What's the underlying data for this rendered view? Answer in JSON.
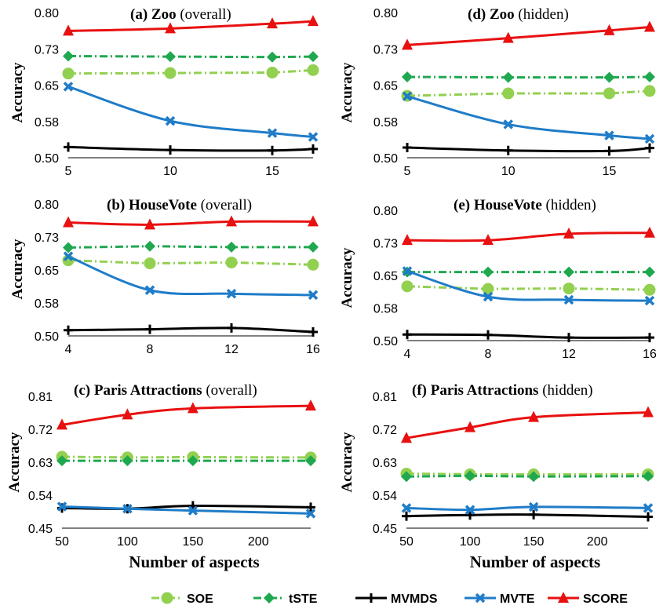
{
  "chart_data": [
    {
      "type": "line",
      "panel": "a",
      "title_bold": "(a) Zoo",
      "title_rest": " (overall)",
      "ylabel": "Accuracy",
      "xlabel": "",
      "x": [
        5,
        10,
        15,
        17
      ],
      "xticks": [
        5,
        10,
        15
      ],
      "xlim": [
        5,
        17
      ],
      "ylim": [
        0.5,
        0.8
      ],
      "yticks": [
        0.5,
        0.575,
        0.65,
        0.725,
        0.8
      ],
      "ytick_labels": [
        "0.50",
        "0.58",
        "0.65",
        "0.73",
        "0.80"
      ],
      "series": [
        {
          "name": "SOE",
          "values": [
            0.674,
            0.675,
            0.676,
            0.681
          ]
        },
        {
          "name": "tSTE",
          "values": [
            0.71,
            0.709,
            0.708,
            0.709
          ]
        },
        {
          "name": "MVMDS",
          "values": [
            0.522,
            0.516,
            0.515,
            0.518
          ]
        },
        {
          "name": "MVTE",
          "values": [
            0.647,
            0.576,
            0.551,
            0.543
          ]
        },
        {
          "name": "SCORE",
          "values": [
            0.762,
            0.767,
            0.777,
            0.782
          ]
        }
      ]
    },
    {
      "type": "line",
      "panel": "d",
      "title_bold": "(d) Zoo",
      "title_rest": "  (hidden)",
      "ylabel": "Accuracy",
      "xlabel": "",
      "x": [
        5,
        10,
        15,
        17
      ],
      "xticks": [
        5,
        10,
        15
      ],
      "xlim": [
        5,
        17
      ],
      "ylim": [
        0.5,
        0.8
      ],
      "yticks": [
        0.5,
        0.575,
        0.65,
        0.725,
        0.8
      ],
      "ytick_labels": [
        "0.50",
        "0.58",
        "0.65",
        "0.73",
        "0.80"
      ],
      "series": [
        {
          "name": "SOE",
          "values": [
            0.628,
            0.633,
            0.633,
            0.638
          ]
        },
        {
          "name": "tSTE",
          "values": [
            0.667,
            0.666,
            0.666,
            0.667
          ]
        },
        {
          "name": "MVMDS",
          "values": [
            0.521,
            0.515,
            0.514,
            0.52
          ]
        },
        {
          "name": "MVTE",
          "values": [
            0.627,
            0.569,
            0.546,
            0.539
          ]
        },
        {
          "name": "SCORE",
          "values": [
            0.733,
            0.747,
            0.763,
            0.77
          ]
        }
      ]
    },
    {
      "type": "line",
      "panel": "b",
      "title_bold": "(b) HouseVote",
      "title_rest": " (overall)",
      "ylabel": "Accuracy",
      "xlabel": "",
      "x": [
        4,
        8,
        12,
        16
      ],
      "xticks": [
        4,
        8,
        12,
        16
      ],
      "xlim": [
        4,
        16
      ],
      "ylim": [
        0.5,
        0.8
      ],
      "yticks": [
        0.5,
        0.575,
        0.65,
        0.725,
        0.8
      ],
      "ytick_labels": [
        "0.50",
        "0.58",
        "0.65",
        "0.73",
        "0.80"
      ],
      "series": [
        {
          "name": "SOE",
          "values": [
            0.672,
            0.665,
            0.667,
            0.662
          ]
        },
        {
          "name": "tSTE",
          "values": [
            0.701,
            0.704,
            0.702,
            0.702
          ]
        },
        {
          "name": "MVMDS",
          "values": [
            0.513,
            0.515,
            0.518,
            0.509
          ]
        },
        {
          "name": "MVTE",
          "values": [
            0.681,
            0.604,
            0.596,
            0.593
          ]
        },
        {
          "name": "SCORE",
          "values": [
            0.758,
            0.753,
            0.76,
            0.76
          ]
        }
      ]
    },
    {
      "type": "line",
      "panel": "e",
      "title_bold": "(e) HouseVote",
      "title_rest": "  (hidden)",
      "ylabel": "Accuracy",
      "xlabel": "",
      "x": [
        4,
        8,
        12,
        16
      ],
      "xticks": [
        4,
        8,
        12,
        16
      ],
      "xlim": [
        4,
        16
      ],
      "ylim": [
        0.5,
        0.8
      ],
      "yticks": [
        0.5,
        0.575,
        0.65,
        0.725,
        0.8
      ],
      "ytick_labels": [
        "0.50",
        "0.58",
        "0.65",
        "0.73",
        "0.80"
      ],
      "series": [
        {
          "name": "SOE",
          "values": [
            0.625,
            0.619,
            0.62,
            0.617
          ]
        },
        {
          "name": "tSTE",
          "values": [
            0.658,
            0.658,
            0.658,
            0.658
          ]
        },
        {
          "name": "MVMDS",
          "values": [
            0.514,
            0.513,
            0.507,
            0.507
          ]
        },
        {
          "name": "MVTE",
          "values": [
            0.66,
            0.601,
            0.594,
            0.592
          ]
        },
        {
          "name": "SCORE",
          "values": [
            0.731,
            0.731,
            0.746,
            0.748
          ]
        }
      ]
    },
    {
      "type": "line",
      "panel": "c",
      "title_bold": "(c) Paris Attractions",
      "title_rest": " (overall)",
      "ylabel": "Accuracy",
      "xlabel": "Number of aspects",
      "x": [
        50,
        100,
        150,
        240
      ],
      "xticks": [
        50,
        100,
        150,
        200
      ],
      "xlim": [
        50,
        240
      ],
      "ylim": [
        0.45,
        0.81
      ],
      "yticks": [
        0.45,
        0.54,
        0.63,
        0.72,
        0.81
      ],
      "ytick_labels": [
        "0.45",
        "0.54",
        "0.63",
        "0.72",
        "0.81"
      ],
      "series": [
        {
          "name": "SOE",
          "values": [
            0.645,
            0.643,
            0.644,
            0.643
          ]
        },
        {
          "name": "tSTE",
          "values": [
            0.634,
            0.634,
            0.634,
            0.634
          ]
        },
        {
          "name": "MVMDS",
          "values": [
            0.505,
            0.503,
            0.511,
            0.507
          ]
        },
        {
          "name": "MVTE",
          "values": [
            0.509,
            0.503,
            0.498,
            0.49
          ]
        },
        {
          "name": "SCORE",
          "values": [
            0.732,
            0.76,
            0.777,
            0.784
          ]
        }
      ]
    },
    {
      "type": "line",
      "panel": "f",
      "title_bold": "(f) Paris Attractions",
      "title_rest": " (hidden)",
      "ylabel": "Accuracy",
      "xlabel": "Number of aspects",
      "x": [
        50,
        100,
        150,
        240
      ],
      "xticks": [
        50,
        100,
        150,
        200
      ],
      "xlim": [
        50,
        240
      ],
      "ylim": [
        0.45,
        0.81
      ],
      "yticks": [
        0.45,
        0.54,
        0.63,
        0.72,
        0.81
      ],
      "ytick_labels": [
        "0.45",
        "0.54",
        "0.63",
        "0.72",
        "0.81"
      ],
      "series": [
        {
          "name": "SOE",
          "values": [
            0.599,
            0.597,
            0.597,
            0.597
          ]
        },
        {
          "name": "tSTE",
          "values": [
            0.591,
            0.593,
            0.591,
            0.592
          ]
        },
        {
          "name": "MVMDS",
          "values": [
            0.483,
            0.486,
            0.487,
            0.481
          ]
        },
        {
          "name": "MVTE",
          "values": [
            0.505,
            0.5,
            0.508,
            0.505
          ]
        },
        {
          "name": "SCORE",
          "values": [
            0.696,
            0.725,
            0.753,
            0.766
          ]
        }
      ]
    }
  ],
  "legend": [
    {
      "name": "SOE",
      "color": "#92D050",
      "marker": "circle",
      "dash": "dashdot"
    },
    {
      "name": "tSTE",
      "color": "#1FA84F",
      "marker": "diamond",
      "dash": "dashdot"
    },
    {
      "name": "MVMDS",
      "color": "#000000",
      "marker": "plus",
      "dash": "solid"
    },
    {
      "name": "MVTE",
      "color": "#1F7CC8",
      "marker": "x",
      "dash": "solid"
    },
    {
      "name": "SCORE",
      "color": "#E81010",
      "marker": "triangle",
      "dash": "solid"
    }
  ]
}
